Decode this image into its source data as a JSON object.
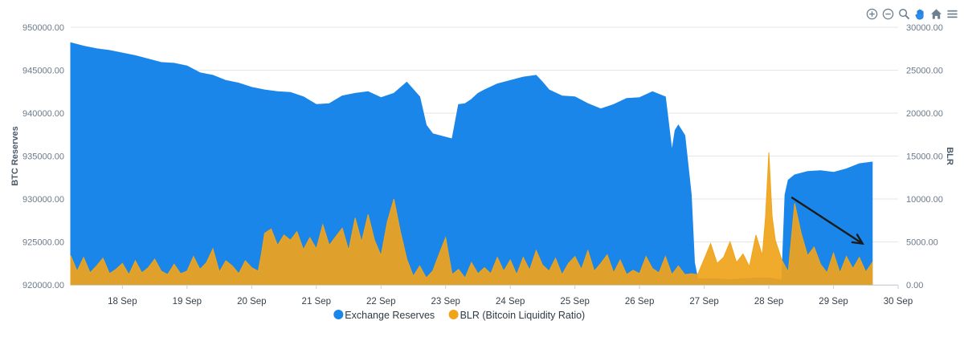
{
  "chart_data": {
    "type": "area",
    "legend_position": "bottom-center",
    "colors": {
      "reserves": "#1a86e9",
      "blr": "#f0a41a",
      "arrow": "#1b1b1b",
      "grid": "#e6e6e6"
    },
    "axes": {
      "x": {
        "ticks": [
          "18 Sep",
          "19 Sep",
          "20 Sep",
          "21 Sep",
          "22 Sep",
          "23 Sep",
          "24 Sep",
          "25 Sep",
          "26 Sep",
          "27 Sep",
          "28 Sep",
          "29 Sep",
          "30 Sep"
        ],
        "range_days": [
          17.2,
          30.0
        ]
      },
      "y_left": {
        "label": "BTC Reserves",
        "range": [
          920000,
          950000
        ],
        "ticks": [
          "920000.00",
          "925000.00",
          "930000.00",
          "935000.00",
          "940000.00",
          "945000.00",
          "950000.00"
        ]
      },
      "y_right": {
        "label": "BLR",
        "range": [
          0,
          30000
        ],
        "ticks": [
          "0.00",
          "5000.00",
          "10000.00",
          "15000.00",
          "20000.00",
          "25000.00",
          "30000.00"
        ]
      }
    },
    "series": [
      {
        "name": "Exchange Reserves",
        "axis": "left",
        "x": [
          17.2,
          17.4,
          17.6,
          17.8,
          18.0,
          18.2,
          18.4,
          18.6,
          18.8,
          19.0,
          19.2,
          19.4,
          19.6,
          19.8,
          20.0,
          20.2,
          20.4,
          20.6,
          20.8,
          21.0,
          21.2,
          21.4,
          21.6,
          21.8,
          22.0,
          22.2,
          22.4,
          22.6,
          22.7,
          22.8,
          22.9,
          23.0,
          23.1,
          23.2,
          23.3,
          23.4,
          23.5,
          23.6,
          23.8,
          24.0,
          24.2,
          24.4,
          24.5,
          24.6,
          24.8,
          25.0,
          25.2,
          25.4,
          25.6,
          25.8,
          26.0,
          26.2,
          26.4,
          26.5,
          26.55,
          26.6,
          26.7,
          26.8,
          26.85,
          26.9,
          27.0,
          27.2,
          27.4,
          27.6,
          27.8,
          28.0,
          28.2,
          28.25,
          28.3,
          28.4,
          28.6,
          28.8,
          29.0,
          29.2,
          29.4,
          29.6
        ],
        "values": [
          948200,
          947800,
          947500,
          947300,
          947000,
          946700,
          946300,
          945900,
          945800,
          945500,
          944700,
          944400,
          943800,
          943500,
          943000,
          942700,
          942500,
          942400,
          941900,
          941000,
          941100,
          942000,
          942300,
          942500,
          941800,
          942300,
          943600,
          941900,
          938600,
          937600,
          937400,
          937200,
          937000,
          941000,
          941100,
          941600,
          942300,
          942700,
          943400,
          943800,
          944200,
          944400,
          943600,
          942700,
          942000,
          941900,
          941100,
          940500,
          941000,
          941700,
          941800,
          942500,
          941900,
          935600,
          938000,
          938600,
          937400,
          930500,
          922600,
          920700,
          920700,
          920700,
          920600,
          920700,
          920800,
          920800,
          920600,
          930500,
          932200,
          932800,
          933200,
          933300,
          933100,
          933500,
          934100,
          934300
        ]
      },
      {
        "name": "BLR (Bitcoin Liquidity Ratio)",
        "axis": "right",
        "x": [
          17.2,
          17.3,
          17.4,
          17.5,
          17.6,
          17.7,
          17.8,
          17.9,
          18.0,
          18.1,
          18.2,
          18.3,
          18.4,
          18.5,
          18.6,
          18.7,
          18.8,
          18.9,
          19.0,
          19.1,
          19.2,
          19.3,
          19.4,
          19.5,
          19.6,
          19.7,
          19.8,
          19.9,
          20.0,
          20.1,
          20.15,
          20.2,
          20.3,
          20.4,
          20.5,
          20.6,
          20.7,
          20.8,
          20.9,
          21.0,
          21.1,
          21.2,
          21.3,
          21.4,
          21.5,
          21.6,
          21.7,
          21.8,
          21.9,
          22.0,
          22.1,
          22.2,
          22.3,
          22.4,
          22.5,
          22.6,
          22.7,
          22.8,
          22.9,
          23.0,
          23.1,
          23.2,
          23.3,
          23.4,
          23.5,
          23.6,
          23.7,
          23.8,
          23.9,
          24.0,
          24.1,
          24.2,
          24.3,
          24.4,
          24.5,
          24.6,
          24.7,
          24.8,
          24.9,
          25.0,
          25.1,
          25.2,
          25.3,
          25.4,
          25.5,
          25.6,
          25.7,
          25.8,
          25.9,
          26.0,
          26.1,
          26.2,
          26.3,
          26.4,
          26.5,
          26.6,
          26.7,
          26.8,
          26.9,
          27.0,
          27.1,
          27.2,
          27.3,
          27.4,
          27.5,
          27.6,
          27.7,
          27.8,
          27.9,
          27.95,
          28.0,
          28.05,
          28.1,
          28.2,
          28.3,
          28.4,
          28.5,
          28.6,
          28.7,
          28.8,
          28.9,
          29.0,
          29.1,
          29.2,
          29.3,
          29.4,
          29.5,
          29.6
        ],
        "values": [
          3400,
          1600,
          3200,
          1400,
          2200,
          3100,
          1300,
          1800,
          2500,
          1200,
          2800,
          1400,
          2000,
          3000,
          1600,
          1200,
          2400,
          1300,
          1600,
          3300,
          1800,
          2600,
          4200,
          1500,
          2800,
          2200,
          1300,
          2800,
          2000,
          1600,
          3600,
          6000,
          6500,
          4600,
          5800,
          5200,
          6200,
          4100,
          5500,
          4200,
          7000,
          4600,
          5600,
          6600,
          4000,
          7800,
          5000,
          8200,
          5200,
          3400,
          7400,
          10000,
          6200,
          3000,
          1000,
          2200,
          800,
          1600,
          3600,
          5500,
          1200,
          1800,
          800,
          2600,
          1300,
          2000,
          1300,
          3200,
          1600,
          2900,
          1200,
          3200,
          1700,
          4000,
          2300,
          1600,
          3100,
          1200,
          2500,
          3300,
          1800,
          4000,
          1600,
          2500,
          3500,
          1400,
          2900,
          1200,
          1700,
          1300,
          3300,
          1900,
          1400,
          3300,
          1200,
          2200,
          1200,
          1300,
          1200,
          3000,
          4800,
          2500,
          3200,
          5000,
          2600,
          3600,
          2100,
          5800,
          3400,
          8000,
          15400,
          8000,
          5200,
          2900,
          1500,
          9500,
          6000,
          3400,
          4400,
          2400,
          1400,
          3700,
          1400,
          3300,
          1900,
          3200,
          1500,
          2600
        ]
      }
    ],
    "annotations": [
      {
        "type": "arrow",
        "from": {
          "x": 28.35,
          "y": 930200
        },
        "to": {
          "x": 29.45,
          "y": 924800
        }
      }
    ]
  }
}
